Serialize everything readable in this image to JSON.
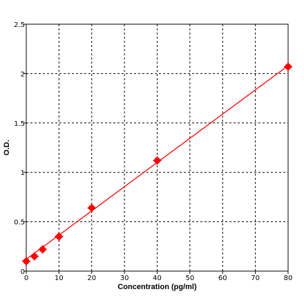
{
  "chart_data": {
    "type": "scatter",
    "xlabel": "Concentration (pg/ml)",
    "ylabel": "O.D.",
    "xlim": [
      0,
      80
    ],
    "ylim": [
      0,
      2.5
    ],
    "x_ticks": [
      0,
      10,
      20,
      30,
      40,
      50,
      60,
      70,
      80
    ],
    "y_ticks": [
      0,
      0.5,
      1,
      1.5,
      2,
      2.5
    ],
    "x_tick_labels": [
      "0",
      "10",
      "20",
      "30",
      "40",
      "50",
      "60",
      "70",
      "80"
    ],
    "y_tick_labels": [
      "0",
      "0.5",
      "1",
      "1.5",
      "2",
      "2.5"
    ],
    "grid": true,
    "points": [
      {
        "x": 0,
        "y": 0.1
      },
      {
        "x": 2.5,
        "y": 0.15
      },
      {
        "x": 5,
        "y": 0.22
      },
      {
        "x": 10,
        "y": 0.35
      },
      {
        "x": 20,
        "y": 0.64
      },
      {
        "x": 40,
        "y": 1.12
      },
      {
        "x": 80,
        "y": 2.07
      }
    ],
    "fit_line": {
      "x": [
        0,
        80
      ],
      "y": [
        0.12,
        2.08
      ]
    },
    "colors": {
      "points": "#ff0000",
      "line": "#ff0000",
      "grid": "#000000",
      "axis": "#000000"
    }
  }
}
